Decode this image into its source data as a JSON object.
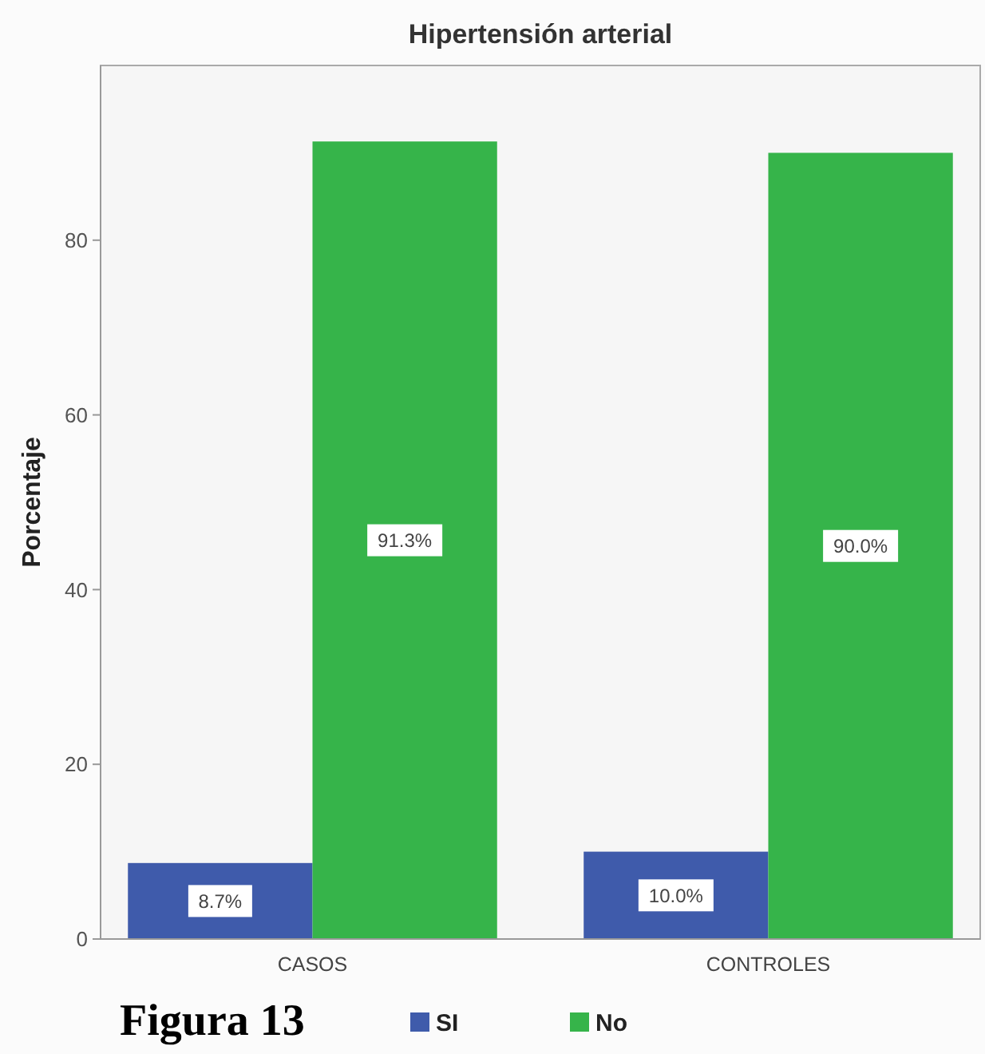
{
  "chart_data": {
    "type": "bar",
    "title": "Hipertensión arterial",
    "ylabel": "Porcentaje",
    "categories": [
      "CASOS",
      "CONTROLES"
    ],
    "series": [
      {
        "name": "SI",
        "color": "#3f5bab",
        "values": [
          8.7,
          10.0
        ],
        "value_labels": [
          "8.7%",
          "10.0%"
        ]
      },
      {
        "name": "No",
        "color": "#36b44a",
        "values": [
          91.3,
          90.0
        ],
        "value_labels": [
          "91.3%",
          "90.0%"
        ]
      }
    ],
    "ylim": [
      0,
      100
    ],
    "yticks": [
      0,
      20,
      40,
      60,
      80
    ],
    "legend": "bottom",
    "annotations": [
      "Figura 13"
    ]
  }
}
